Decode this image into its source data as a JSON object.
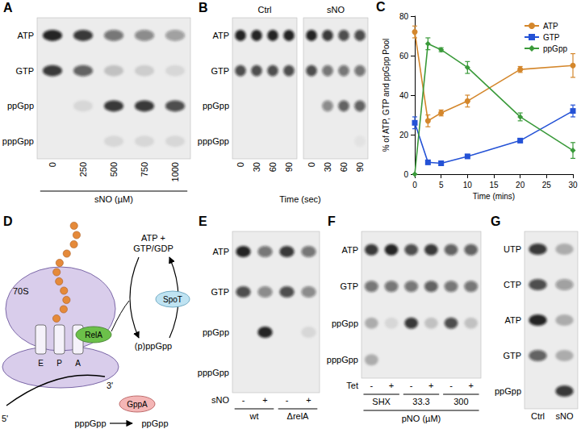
{
  "gels": [
    {
      "letter": "A",
      "rows": [
        "ATP",
        "GTP",
        "ppGpp",
        "pppGpp"
      ],
      "groups": [
        {
          "lanes": [
            "0",
            "250",
            "500",
            "750",
            "1000"
          ],
          "spots": [
            [
              1,
              0.9,
              0.6,
              0.5,
              0.4
            ],
            [
              0.9,
              0.7,
              0.2,
              0.15,
              0.1
            ],
            [
              0,
              0.1,
              0.9,
              0.9,
              0.8
            ],
            [
              0,
              0,
              0.1,
              0.1,
              0.1
            ]
          ]
        }
      ],
      "footer": "sNO (µM)"
    },
    {
      "letter": "B",
      "rows": [
        "ATP",
        "GTP",
        "ppGpp",
        "pppGpp"
      ],
      "groups": [
        {
          "label": "Ctrl",
          "lanes": [
            "0",
            "30",
            "60",
            "90"
          ],
          "spots": [
            [
              1,
              1,
              1,
              1
            ],
            [
              0.8,
              0.8,
              0.8,
              0.8
            ],
            [
              0,
              0,
              0,
              0
            ],
            [
              0,
              0,
              0,
              0
            ]
          ]
        },
        {
          "label": "sNO",
          "lanes": [
            "0",
            "30",
            "60",
            "90"
          ],
          "spots": [
            [
              1,
              0.9,
              0.8,
              0.8
            ],
            [
              0.8,
              0.6,
              0.6,
              0.6
            ],
            [
              0,
              0.5,
              0.7,
              0.7
            ],
            [
              0,
              0,
              0,
              0.05
            ]
          ]
        }
      ],
      "footer": "Time (sec)"
    },
    {
      "letter": "E",
      "rows": [
        "ATP",
        "GTP",
        "ppGpp",
        "pppGpp"
      ],
      "lane_title": "sNO",
      "groups": [
        {
          "label": "wt",
          "lanes": [
            "-",
            "+"
          ],
          "spots": [
            [
              1,
              0.6
            ],
            [
              0.8,
              0.5
            ],
            [
              0,
              1
            ],
            [
              0,
              0
            ]
          ]
        },
        {
          "label": "ΔrelA",
          "lanes": [
            "-",
            "+"
          ],
          "spots": [
            [
              0.9,
              0.6
            ],
            [
              0.8,
              0.5
            ],
            [
              0,
              0.1
            ],
            [
              0,
              0
            ]
          ]
        }
      ]
    },
    {
      "letter": "F",
      "rows": [
        "ATP",
        "GTP",
        "ppGpp",
        "pppGpp"
      ],
      "lane_title": "Tet",
      "groups": [
        {
          "label": "SHX",
          "lanes": [
            "-",
            "+"
          ],
          "spots": [
            [
              0.9,
              1
            ],
            [
              0.6,
              0.6
            ],
            [
              0.3,
              0.1
            ],
            [
              0.3,
              0
            ]
          ]
        },
        {
          "label": "33.3",
          "lanes": [
            "-",
            "+"
          ],
          "spots": [
            [
              0.8,
              0.9
            ],
            [
              0.6,
              0.7
            ],
            [
              0.9,
              0.2
            ],
            [
              0,
              0
            ]
          ]
        },
        {
          "label": "300",
          "lanes": [
            "-",
            "+"
          ],
          "spots": [
            [
              0.7,
              0.7
            ],
            [
              0.6,
              0.6
            ],
            [
              0.8,
              0.2
            ],
            [
              0,
              0
            ]
          ]
        }
      ],
      "footer": "pNO (µM)"
    },
    {
      "letter": "G",
      "rows": [
        "UTP",
        "CTP",
        "ATP",
        "GTP",
        "ppGpp"
      ],
      "groups": [
        {
          "lanes": [
            "Ctrl",
            "sNO"
          ],
          "spots": [
            [
              0.9,
              0.3
            ],
            [
              0.8,
              0.4
            ],
            [
              1,
              0.3
            ],
            [
              0.7,
              0.3
            ],
            [
              0,
              0.9
            ]
          ]
        }
      ]
    }
  ],
  "diagram": {
    "letter": "D",
    "ribosome": "70S",
    "sites": [
      "E",
      "P",
      "A"
    ],
    "mrna_ends": [
      "5'",
      "3'"
    ],
    "enzymes": {
      "relA": "RelA",
      "spoT": "SpoT",
      "gppA": "GppA"
    },
    "substrates": [
      "ATP +",
      "GTP/GDP"
    ],
    "product": "(p)ppGpp",
    "conversion": [
      "pppGpp",
      "ppGpp"
    ]
  },
  "chart_data": {
    "type": "line",
    "annotations": [
      "C"
    ],
    "x_label": "Time (mins)",
    "y_label": "% of ATP, GTP and ppGpp Pool",
    "x": [
      0,
      2.5,
      5,
      10,
      20,
      30
    ],
    "series": [
      {
        "name": "ATP",
        "color": "#d4872c",
        "marker": "circle",
        "values": [
          72,
          27,
          31,
          37,
          53,
          55
        ],
        "errors": [
          3,
          3,
          1.5,
          3,
          1.5,
          6
        ]
      },
      {
        "name": "GTP",
        "color": "#2452d6",
        "marker": "rect",
        "values": [
          26,
          6,
          5.5,
          9,
          17,
          32
        ],
        "errors": [
          3,
          1,
          1,
          1,
          1,
          3
        ]
      },
      {
        "name": "ppGpp",
        "color": "#3a9a3a",
        "marker": "diamond",
        "values": [
          0,
          66,
          63,
          54,
          29,
          12
        ],
        "errors": [
          0,
          3,
          1,
          3,
          2,
          4
        ]
      }
    ],
    "xlim": [
      0,
      30
    ],
    "xticks": [
      0,
      5,
      10,
      15,
      20,
      25,
      30
    ],
    "ylim": [
      0,
      80
    ],
    "yticks": [
      0,
      20,
      40,
      60,
      80
    ],
    "grid": false,
    "legend": "upper right"
  }
}
